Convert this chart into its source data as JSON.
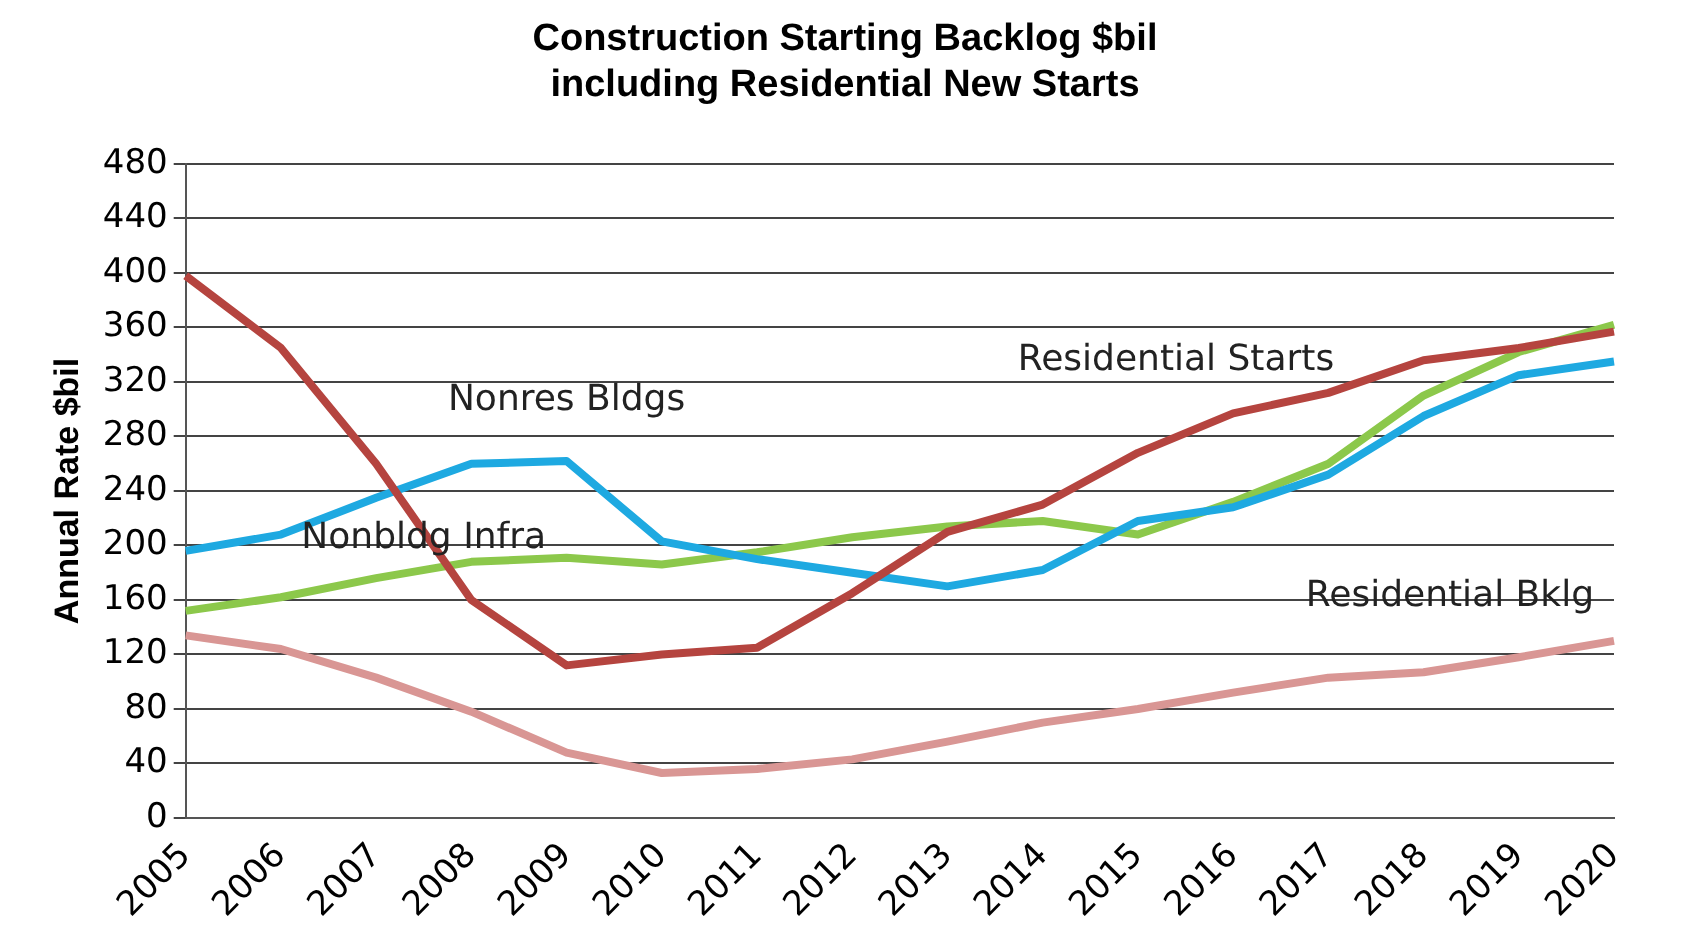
{
  "chart_data": {
    "type": "line",
    "title": "Construction Starting Backlog $bil\nincluding Residential New Starts",
    "ylabel": "Annual Rate $bil",
    "categories": [
      "2005",
      "2006",
      "2007",
      "2008",
      "2009",
      "2010",
      "2011",
      "2012",
      "2013",
      "2014",
      "2015",
      "2016",
      "2017",
      "2018",
      "2019",
      "2020"
    ],
    "series": [
      {
        "name": "Residential Starts",
        "color": "#b5443f",
        "values": [
          398,
          345,
          260,
          160,
          112,
          120,
          125,
          165,
          210,
          230,
          268,
          297,
          312,
          336,
          345,
          357
        ]
      },
      {
        "name": "Nonres Bldgs",
        "color": "#1ea9e1",
        "values": [
          196,
          208,
          235,
          260,
          262,
          203,
          190,
          180,
          170,
          182,
          218,
          228,
          252,
          295,
          325,
          335
        ]
      },
      {
        "name": "Nonbldg Infra",
        "color": "#8cc84b",
        "values": [
          152,
          162,
          176,
          188,
          191,
          186,
          195,
          206,
          214,
          218,
          208,
          232,
          260,
          310,
          342,
          362
        ]
      },
      {
        "name": "Residential Bklg",
        "color": "#d99694",
        "values": [
          134,
          124,
          103,
          78,
          48,
          33,
          36,
          43,
          56,
          70,
          80,
          92,
          103,
          107,
          118,
          130
        ]
      }
    ],
    "ylim": [
      0,
      480
    ],
    "yticks": [
      0,
      40,
      80,
      120,
      160,
      200,
      240,
      280,
      320,
      360,
      400,
      440,
      480
    ],
    "grid": "y",
    "legend": false,
    "marker": "none",
    "line_style": "solid"
  }
}
